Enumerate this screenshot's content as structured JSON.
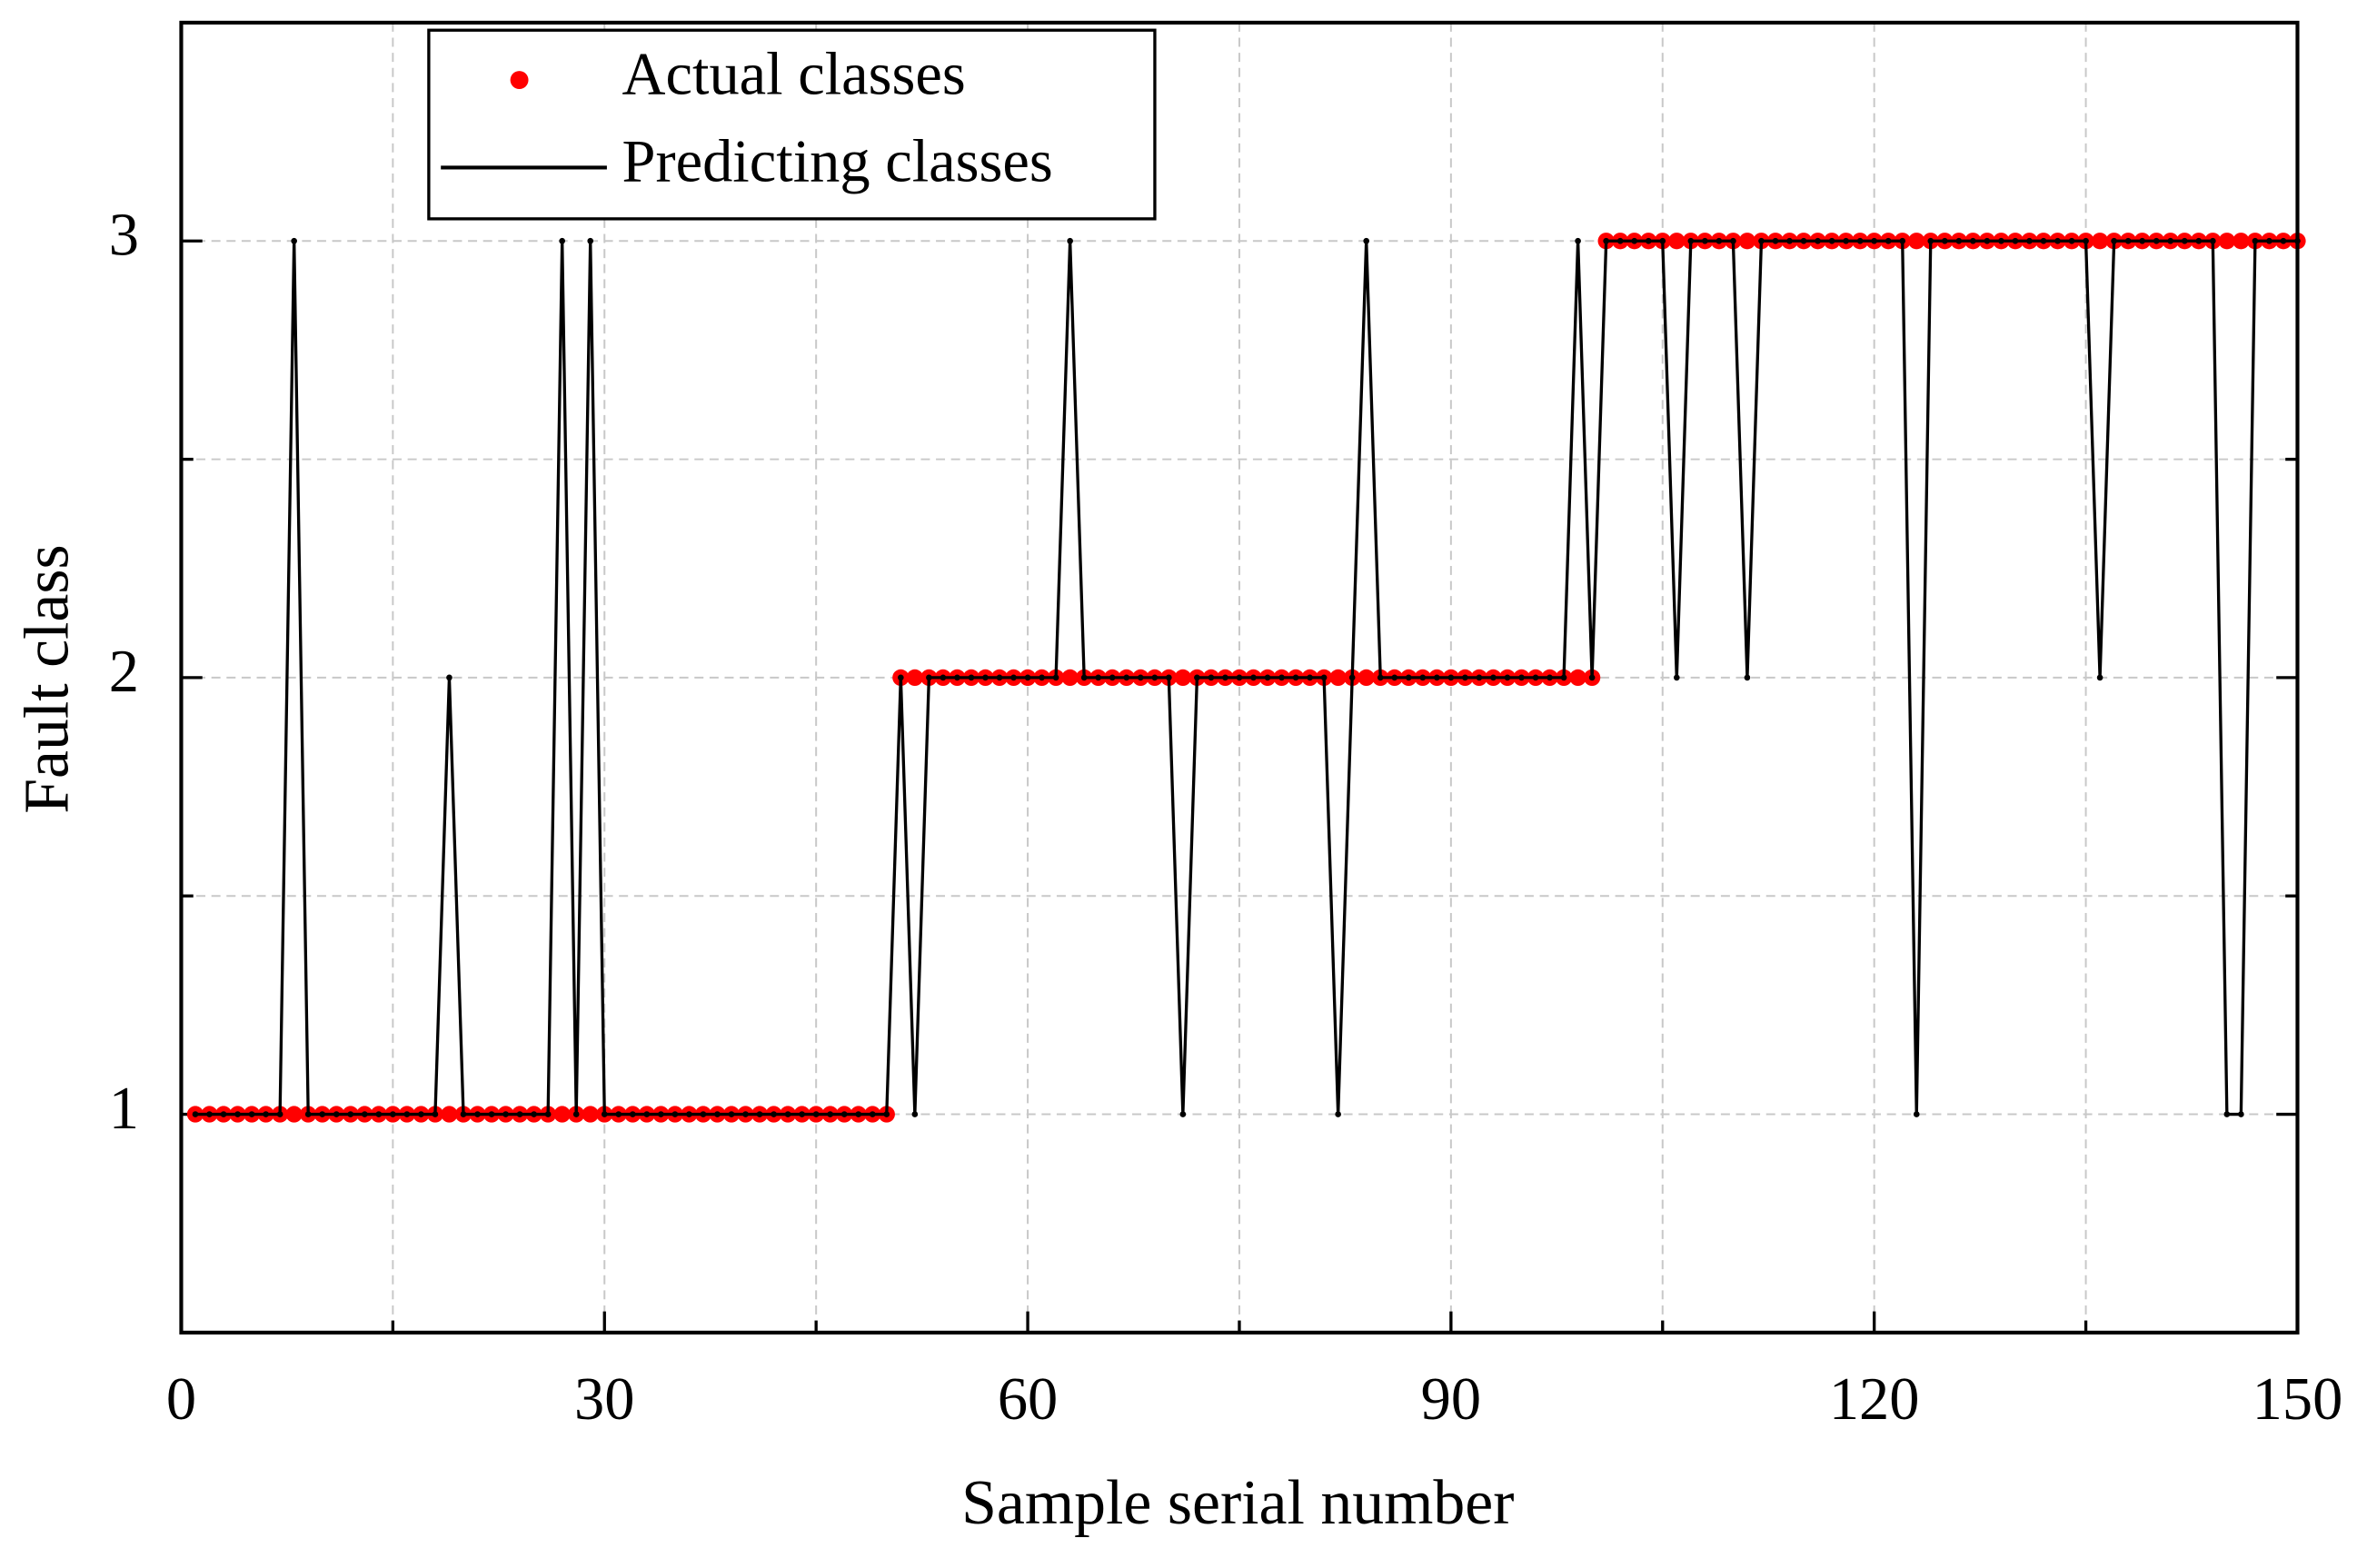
{
  "chart_data": {
    "type": "line",
    "x_label": "Sample serial number",
    "y_label": "Fault class",
    "x": [
      1,
      2,
      3,
      4,
      5,
      6,
      7,
      8,
      9,
      10,
      11,
      12,
      13,
      14,
      15,
      16,
      17,
      18,
      19,
      20,
      21,
      22,
      23,
      24,
      25,
      26,
      27,
      28,
      29,
      30,
      31,
      32,
      33,
      34,
      35,
      36,
      37,
      38,
      39,
      40,
      41,
      42,
      43,
      44,
      45,
      46,
      47,
      48,
      49,
      50,
      51,
      52,
      53,
      54,
      55,
      56,
      57,
      58,
      59,
      60,
      61,
      62,
      63,
      64,
      65,
      66,
      67,
      68,
      69,
      70,
      71,
      72,
      73,
      74,
      75,
      76,
      77,
      78,
      79,
      80,
      81,
      82,
      83,
      84,
      85,
      86,
      87,
      88,
      89,
      90,
      91,
      92,
      93,
      94,
      95,
      96,
      97,
      98,
      99,
      100,
      101,
      102,
      103,
      104,
      105,
      106,
      107,
      108,
      109,
      110,
      111,
      112,
      113,
      114,
      115,
      116,
      117,
      118,
      119,
      120,
      121,
      122,
      123,
      124,
      125,
      126,
      127,
      128,
      129,
      130,
      131,
      132,
      133,
      134,
      135,
      136,
      137,
      138,
      139,
      140,
      141,
      142,
      143,
      144,
      145,
      146,
      147,
      148,
      149,
      150
    ],
    "series": [
      {
        "name": "Actual classes",
        "type": "scatter",
        "color": "#ff0000",
        "values": [
          1,
          1,
          1,
          1,
          1,
          1,
          1,
          1,
          1,
          1,
          1,
          1,
          1,
          1,
          1,
          1,
          1,
          1,
          1,
          1,
          1,
          1,
          1,
          1,
          1,
          1,
          1,
          1,
          1,
          1,
          1,
          1,
          1,
          1,
          1,
          1,
          1,
          1,
          1,
          1,
          1,
          1,
          1,
          1,
          1,
          1,
          1,
          1,
          1,
          1,
          2,
          2,
          2,
          2,
          2,
          2,
          2,
          2,
          2,
          2,
          2,
          2,
          2,
          2,
          2,
          2,
          2,
          2,
          2,
          2,
          2,
          2,
          2,
          2,
          2,
          2,
          2,
          2,
          2,
          2,
          2,
          2,
          2,
          2,
          2,
          2,
          2,
          2,
          2,
          2,
          2,
          2,
          2,
          2,
          2,
          2,
          2,
          2,
          2,
          2,
          3,
          3,
          3,
          3,
          3,
          3,
          3,
          3,
          3,
          3,
          3,
          3,
          3,
          3,
          3,
          3,
          3,
          3,
          3,
          3,
          3,
          3,
          3,
          3,
          3,
          3,
          3,
          3,
          3,
          3,
          3,
          3,
          3,
          3,
          3,
          3,
          3,
          3,
          3,
          3,
          3,
          3,
          3,
          3,
          3,
          3,
          3,
          3,
          3,
          3
        ]
      },
      {
        "name": "Predicting classes",
        "type": "line",
        "color": "#000000",
        "values": [
          1,
          1,
          1,
          1,
          1,
          1,
          1,
          3,
          1,
          1,
          1,
          1,
          1,
          1,
          1,
          1,
          1,
          1,
          2,
          1,
          1,
          1,
          1,
          1,
          1,
          1,
          3,
          1,
          3,
          1,
          1,
          1,
          1,
          1,
          1,
          1,
          1,
          1,
          1,
          1,
          1,
          1,
          1,
          1,
          1,
          1,
          1,
          1,
          1,
          1,
          2,
          1,
          2,
          2,
          2,
          2,
          2,
          2,
          2,
          2,
          2,
          2,
          3,
          2,
          2,
          2,
          2,
          2,
          2,
          2,
          1,
          2,
          2,
          2,
          2,
          2,
          2,
          2,
          2,
          2,
          2,
          1,
          2,
          3,
          2,
          2,
          2,
          2,
          2,
          2,
          2,
          2,
          2,
          2,
          2,
          2,
          2,
          2,
          3,
          2,
          3,
          3,
          3,
          3,
          3,
          2,
          3,
          3,
          3,
          3,
          2,
          3,
          3,
          3,
          3,
          3,
          3,
          3,
          3,
          3,
          3,
          3,
          1,
          3,
          3,
          3,
          3,
          3,
          3,
          3,
          3,
          3,
          3,
          3,
          3,
          2,
          3,
          3,
          3,
          3,
          3,
          3,
          3,
          3,
          1,
          1,
          3,
          3,
          3,
          3
        ]
      }
    ],
    "xlim": [
      0,
      150
    ],
    "xticks": [
      0,
      30,
      60,
      90,
      120,
      150
    ],
    "x_minor_ticks": [
      15,
      45,
      75,
      105,
      135
    ],
    "ylim": [
      0.5,
      3.5
    ],
    "yticks": [
      1,
      2,
      3
    ],
    "y_minor_ticks": [
      1.5,
      2.5
    ],
    "grid": true,
    "legend": "upper left"
  }
}
